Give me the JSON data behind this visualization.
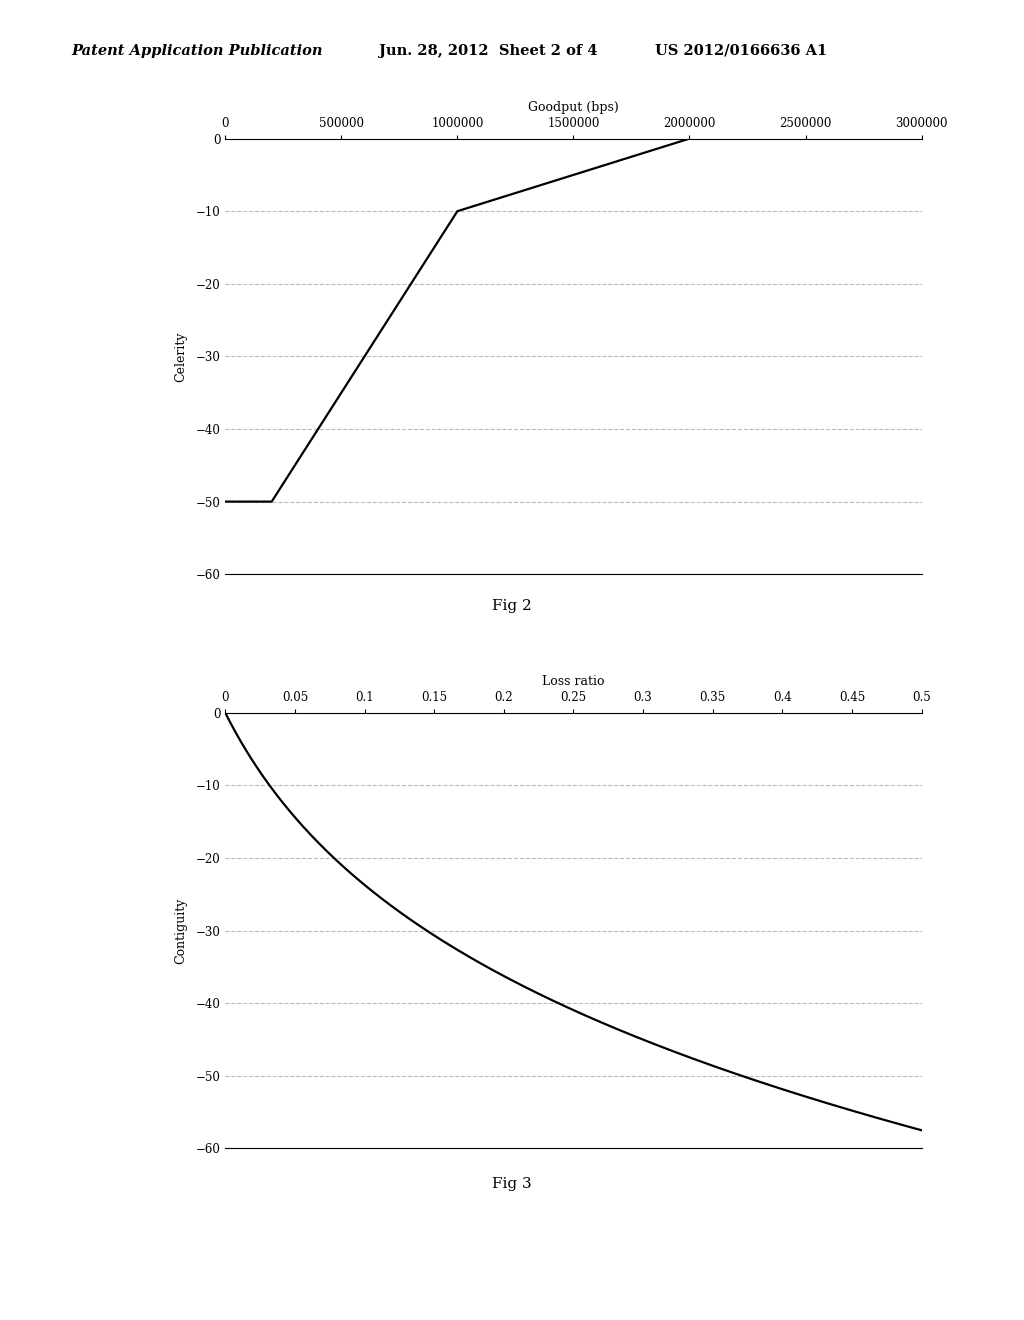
{
  "fig2": {
    "title": "Goodput (bps)",
    "ylabel": "Celerity",
    "figcaption": "Fig 2",
    "xlim": [
      0,
      3000000
    ],
    "ylim": [
      -60,
      0
    ],
    "xticks": [
      0,
      500000,
      1000000,
      1500000,
      2000000,
      2500000,
      3000000
    ],
    "yticks": [
      0,
      -10,
      -20,
      -30,
      -40,
      -50,
      -60
    ],
    "line_x": [
      0,
      200000,
      1000000,
      2000000,
      3000000
    ],
    "line_y": [
      -50,
      -50,
      -10,
      0,
      0
    ]
  },
  "fig3": {
    "title": "Loss ratio",
    "ylabel": "Contiguity",
    "figcaption": "Fig 3",
    "xlim": [
      0,
      0.5
    ],
    "ylim": [
      -60,
      0
    ],
    "xticks": [
      0,
      0.05,
      0.1,
      0.15,
      0.2,
      0.25,
      0.3,
      0.35,
      0.4,
      0.45,
      0.5
    ],
    "yticks": [
      0,
      -10,
      -20,
      -30,
      -40,
      -50,
      -60
    ]
  },
  "background_color": "#ffffff",
  "line_color": "#000000",
  "grid_color": "#bbbbbb",
  "header_italic": "Patent Application Publication",
  "header_date": "Jun. 28, 2012  Sheet 2 of 4",
  "header_patent": "US 2012/0166636 A1"
}
